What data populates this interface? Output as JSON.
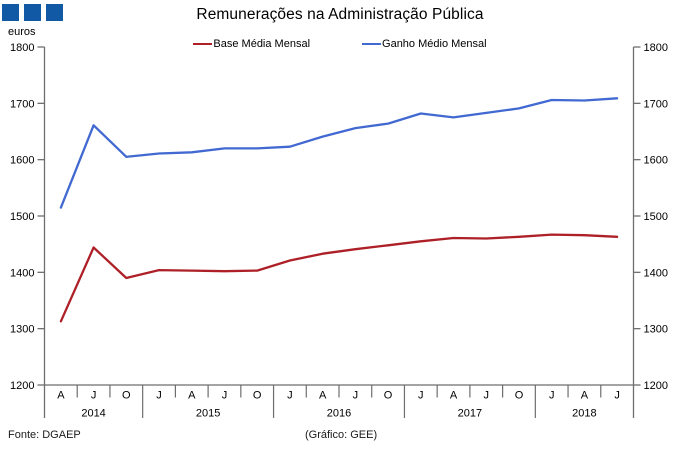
{
  "header": {
    "logo_color": "#1159A5",
    "euros_label": "euros",
    "title": "Remunerações na Administração Pública"
  },
  "legend": [
    {
      "label": "Base Média Mensal",
      "color": "#AE2027"
    },
    {
      "label": "Ganho Médio Mensal",
      "color": "#4169D1"
    }
  ],
  "footer": {
    "source": "Fonte: DGAEP",
    "credit": "(Gráfico: GEE)"
  },
  "chart_data": {
    "type": "line",
    "title": "Remunerações na Administração Pública",
    "unit": "euros",
    "ylim": [
      1200,
      1800
    ],
    "yticks": [
      1200,
      1300,
      1400,
      1500,
      1600,
      1700,
      1800
    ],
    "axis_sides": [
      "left",
      "right"
    ],
    "grid": false,
    "legend_position": "top",
    "x_months": [
      "A",
      "J",
      "O",
      "J",
      "A",
      "J",
      "O",
      "J",
      "A",
      "J",
      "O",
      "J",
      "A",
      "J",
      "O",
      "J",
      "A",
      "J"
    ],
    "year_groups": [
      {
        "year": "2014",
        "count": 3
      },
      {
        "year": "2015",
        "count": 4
      },
      {
        "year": "2016",
        "count": 4
      },
      {
        "year": "2017",
        "count": 4
      },
      {
        "year": "2018",
        "count": 3
      }
    ],
    "series": [
      {
        "name": "Base Média Mensal",
        "color": "#AE2027",
        "values": [
          1313,
          1444,
          1390,
          1404,
          1403,
          1402,
          1403,
          1421,
          1433,
          1441,
          1448,
          1455,
          1461,
          1460,
          1463,
          1467,
          1466,
          1463
        ]
      },
      {
        "name": "Ganho Médio Mensal",
        "color": "#4169D1",
        "values": [
          1515,
          1661,
          1605,
          1611,
          1613,
          1620,
          1620,
          1623,
          1641,
          1656,
          1664,
          1682,
          1675,
          1683,
          1691,
          1706,
          1705,
          1709
        ]
      }
    ]
  }
}
